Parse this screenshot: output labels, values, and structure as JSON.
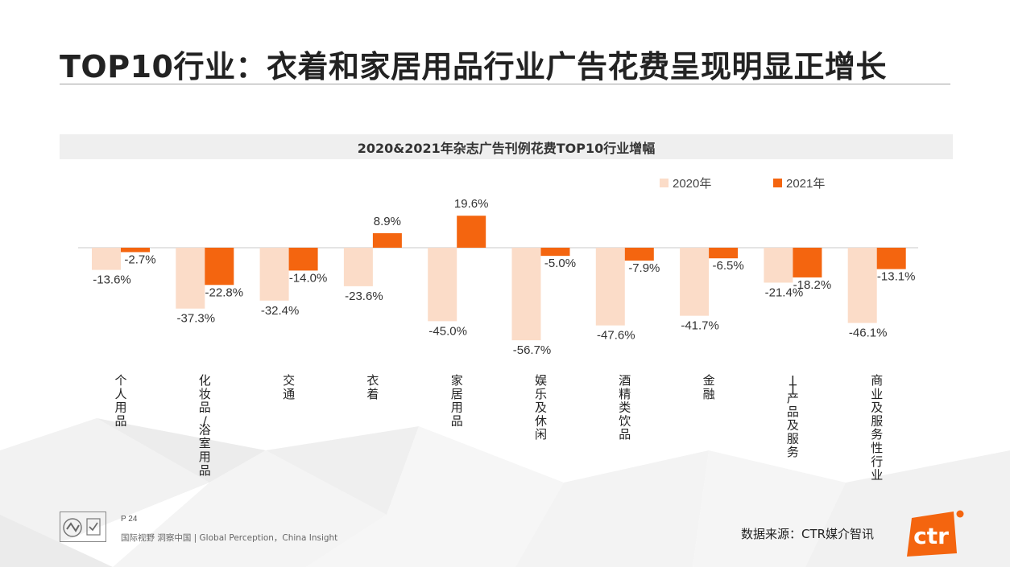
{
  "header": {
    "title": "TOP10行业：衣着和家居用品行业广告花费呈现明显正增长"
  },
  "chart_data": {
    "type": "bar",
    "title": "2020&2021年杂志广告刊例花费TOP10行业增幅",
    "categories": [
      "个人用品",
      "化妆品/浴室用品",
      "交通",
      "衣着",
      "家居用品",
      "娱乐及休闲",
      "酒精类饮品",
      "金融",
      "IT产品及服务",
      "商业及服务性行业"
    ],
    "series": [
      {
        "name": "2020年",
        "values": [
          -13.6,
          -37.3,
          -32.4,
          -23.6,
          -45.0,
          -56.7,
          -47.6,
          -41.7,
          -21.4,
          -46.1
        ],
        "color": "#fbdcc8"
      },
      {
        "name": "2021年",
        "values": [
          -2.7,
          -22.8,
          -14.0,
          8.9,
          19.6,
          -5.0,
          -7.9,
          -6.5,
          -18.2,
          -13.1
        ],
        "color": "#f4650f"
      }
    ],
    "unit": "%",
    "ylim": [
      -60,
      25
    ],
    "grid": false,
    "legend_position": "top-right"
  },
  "footer": {
    "page": "P 24",
    "tagline": "国际视野 洞察中国 | Global Perception，China Insight",
    "source": "数据来源：CTR媒介智讯",
    "brand": "ctr",
    "brand_color": "#f4650f"
  },
  "icons": {
    "certification": "certification-badge-icon",
    "brand": "ctr-logo-icon"
  }
}
